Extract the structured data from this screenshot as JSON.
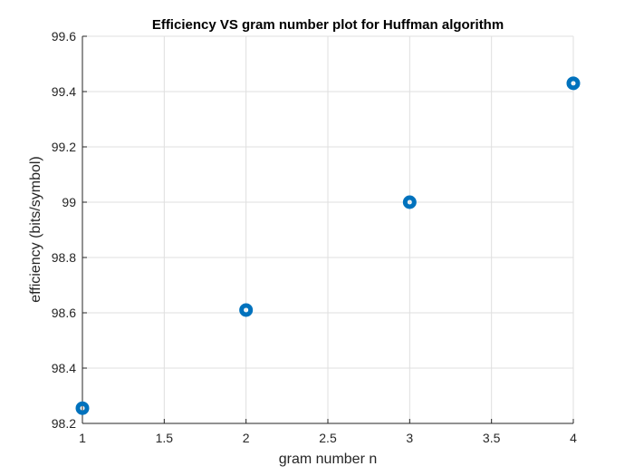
{
  "chart_data": {
    "type": "scatter",
    "title": "Efficiency VS gram number plot for Huffman algorithm",
    "xlabel": "gram number n",
    "ylabel": "efficiency (bits/symbol)",
    "xlim": [
      1,
      4
    ],
    "ylim": [
      98.2,
      99.6
    ],
    "xticks": [
      1,
      1.5,
      2,
      2.5,
      3,
      3.5,
      4
    ],
    "xtick_labels": [
      "1",
      "1.5",
      "2",
      "2.5",
      "3",
      "3.5",
      "4"
    ],
    "yticks": [
      98.2,
      98.4,
      98.6,
      98.8,
      99,
      99.2,
      99.4,
      99.6
    ],
    "ytick_labels": [
      "98.2",
      "98.4",
      "98.6",
      "98.8",
      "99",
      "99.2",
      "99.4",
      "99.6"
    ],
    "grid": true,
    "marker_color": "#0072BD",
    "series": [
      {
        "x": [
          1,
          2,
          3,
          4
        ],
        "y": [
          98.255,
          98.61,
          99.0,
          99.43
        ]
      }
    ]
  }
}
